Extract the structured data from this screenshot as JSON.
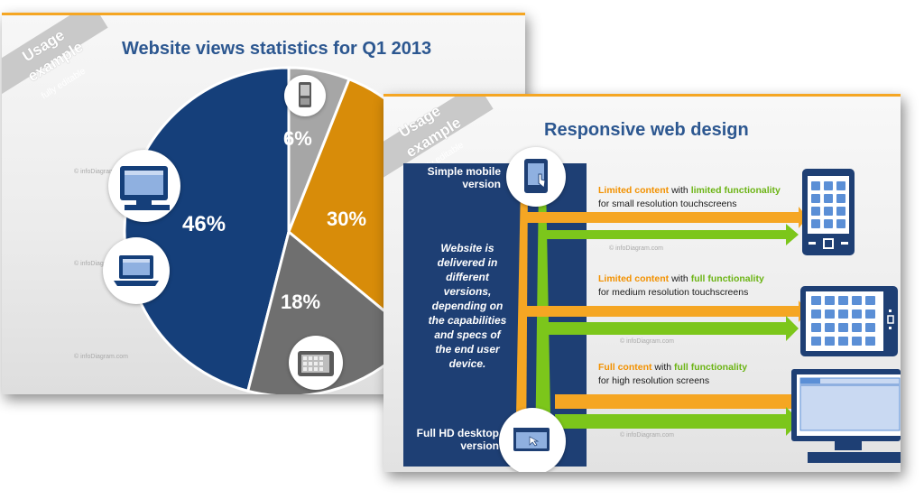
{
  "slide1": {
    "title": "Website views statistics for Q1 2013",
    "ribbon": {
      "line1": "Usage",
      "line2": "example",
      "sub": "fully editable"
    },
    "watermark": "© infoDiagram.com",
    "segments": [
      {
        "label": "46%",
        "value": 46,
        "color": "#153f7a",
        "icon": "desktop-laptop-icons"
      },
      {
        "label": "6%",
        "value": 6,
        "color": "#a6a6a6",
        "icon": "mobile-phone-icon"
      },
      {
        "label": "30%",
        "value": 30,
        "color": "#d88c09",
        "icon": ""
      },
      {
        "label": "18%",
        "value": 18,
        "color": "#6f6f6f",
        "icon": "tablet-icon"
      }
    ]
  },
  "slide2": {
    "title": "Responsive web design",
    "ribbon": {
      "line1": "Usage",
      "line2": "example",
      "sub": "fully editable"
    },
    "watermark": "© infoDiagram.com",
    "simple_mobile": "Simple mobile version",
    "full_hd": "Full HD desktop version",
    "center_text": "Website is delivered in different versions, depending on the capabilities and specs of the end user device.",
    "rows": [
      {
        "content": "Limited content",
        "with": "with",
        "functionality": "limited functionality",
        "sub": "for small resolution touchscreens",
        "device": "phone"
      },
      {
        "content": "Limited content",
        "with": "with",
        "functionality": "full functionality",
        "sub": "for medium resolution touchscreens",
        "device": "tablet"
      },
      {
        "content": "Full content",
        "with": "with",
        "functionality": "full functionality",
        "sub": "for high resolution screens",
        "device": "desktop"
      }
    ],
    "colors": {
      "orange": "#f5a623",
      "green": "#7cc61b",
      "navy": "#1e3f74"
    }
  }
}
